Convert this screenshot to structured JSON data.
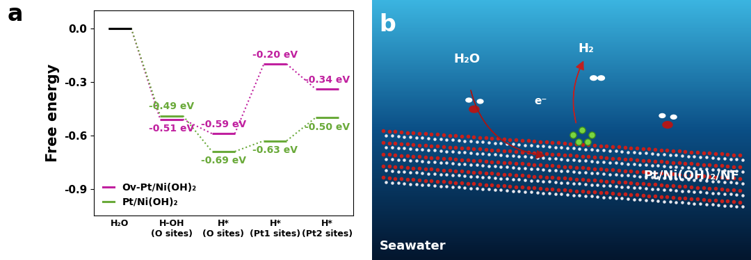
{
  "chart_data": {
    "type": "energy_diagram",
    "panel_label": "a",
    "y_label": "Free energy",
    "categories": [
      "H₂O",
      "H-OH\n(O sites)",
      "H*\n(O sites)",
      "H*\n(Pt1 sites)",
      "H*\n(Pt2 sites)"
    ],
    "ylim": [
      -1.05,
      0.1
    ],
    "yticks": [
      0.0,
      -0.3,
      -0.6,
      -0.9
    ],
    "legend": "lower left",
    "series": [
      {
        "name": "Ov-Pt/Ni(OH)₂",
        "color": "#c0209f",
        "line_style": "dotted",
        "colors": [
          "#000000",
          "#c0209f",
          "#c0209f",
          "#c0209f",
          "#c0209f"
        ],
        "values": [
          0.0,
          -0.51,
          -0.59,
          -0.2,
          -0.34
        ],
        "value_labels": [
          null,
          "-0.51 eV",
          "-0.59 eV",
          "-0.20 eV",
          "-0.34 eV"
        ]
      },
      {
        "name": "Pt/Ni(OH)₂",
        "color": "#6aaa3a",
        "line_style": "dotted",
        "colors": [
          "#000000",
          "#6aaa3a",
          "#6aaa3a",
          "#6aaa3a",
          "#6aaa3a"
        ],
        "values": [
          0.0,
          -0.49,
          -0.69,
          -0.63,
          -0.5
        ],
        "value_labels": [
          null,
          "-0.49 eV",
          "-0.69 eV",
          "-0.63 eV",
          "-0.50 eV"
        ]
      }
    ]
  },
  "illustration": {
    "panel_label": "b",
    "reactant": "H₂O",
    "product": "H₂",
    "electron": "e⁻",
    "catalyst": "Pt/Ni(OH)₂/NF",
    "medium": "Seawater"
  }
}
